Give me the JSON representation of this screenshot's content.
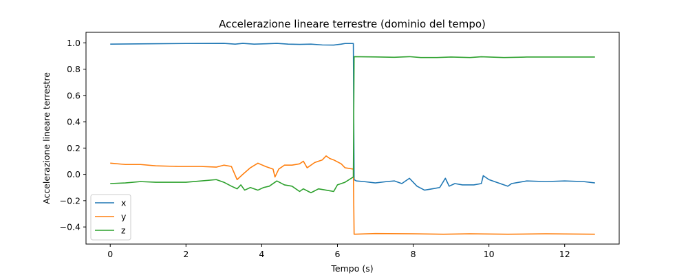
{
  "chart_data": {
    "type": "line",
    "title": "Accelerazione lineare terrestre (dominio del tempo)",
    "xlabel": "Tempo (s)",
    "ylabel": "Accelerazione lineare terrestre",
    "xlim": [
      -0.64,
      13.44
    ],
    "ylim": [
      -0.53,
      1.08
    ],
    "xticks": [
      0,
      2,
      4,
      6,
      8,
      10,
      12
    ],
    "yticks": [
      -0.4,
      -0.2,
      0.0,
      0.2,
      0.4,
      0.6,
      0.8,
      1.0
    ],
    "ytick_labels": [
      "−0.4",
      "−0.2",
      "0.0",
      "0.2",
      "0.4",
      "0.6",
      "0.8",
      "1.0"
    ],
    "grid": false,
    "legend_position": "lower-left",
    "series": [
      {
        "name": "x",
        "color": "#1f77b4",
        "points": [
          [
            0,
            0.99
          ],
          [
            1,
            0.993
          ],
          [
            2,
            0.995
          ],
          [
            3,
            0.996
          ],
          [
            3.3,
            0.99
          ],
          [
            3.5,
            0.996
          ],
          [
            3.8,
            0.99
          ],
          [
            4.1,
            0.993
          ],
          [
            4.4,
            0.996
          ],
          [
            4.7,
            0.99
          ],
          [
            5.0,
            0.988
          ],
          [
            5.3,
            0.99
          ],
          [
            5.6,
            0.984
          ],
          [
            5.9,
            0.983
          ],
          [
            6.1,
            0.99
          ],
          [
            6.2,
            0.995
          ],
          [
            6.42,
            0.995
          ],
          [
            6.44,
            -0.04
          ],
          [
            6.5,
            -0.05
          ],
          [
            6.7,
            -0.055
          ],
          [
            7.0,
            -0.065
          ],
          [
            7.3,
            -0.055
          ],
          [
            7.5,
            -0.05
          ],
          [
            7.7,
            -0.07
          ],
          [
            7.9,
            -0.03
          ],
          [
            8.1,
            -0.09
          ],
          [
            8.3,
            -0.12
          ],
          [
            8.5,
            -0.11
          ],
          [
            8.7,
            -0.1
          ],
          [
            8.85,
            -0.03
          ],
          [
            8.95,
            -0.09
          ],
          [
            9.1,
            -0.07
          ],
          [
            9.3,
            -0.08
          ],
          [
            9.6,
            -0.08
          ],
          [
            9.8,
            -0.07
          ],
          [
            9.85,
            -0.01
          ],
          [
            10.0,
            -0.04
          ],
          [
            10.2,
            -0.06
          ],
          [
            10.5,
            -0.09
          ],
          [
            10.6,
            -0.07
          ],
          [
            10.8,
            -0.06
          ],
          [
            11.0,
            -0.05
          ],
          [
            11.5,
            -0.055
          ],
          [
            12.0,
            -0.05
          ],
          [
            12.5,
            -0.055
          ],
          [
            12.8,
            -0.065
          ]
        ]
      },
      {
        "name": "y",
        "color": "#ff7f0e",
        "points": [
          [
            0,
            0.085
          ],
          [
            0.4,
            0.075
          ],
          [
            0.8,
            0.075
          ],
          [
            1.2,
            0.065
          ],
          [
            1.8,
            0.06
          ],
          [
            2.4,
            0.06
          ],
          [
            2.8,
            0.055
          ],
          [
            3.0,
            0.07
          ],
          [
            3.2,
            0.06
          ],
          [
            3.35,
            -0.04
          ],
          [
            3.5,
            0.0
          ],
          [
            3.7,
            0.05
          ],
          [
            3.9,
            0.085
          ],
          [
            4.1,
            0.06
          ],
          [
            4.3,
            0.04
          ],
          [
            4.35,
            -0.02
          ],
          [
            4.45,
            0.04
          ],
          [
            4.6,
            0.07
          ],
          [
            4.8,
            0.07
          ],
          [
            5.0,
            0.08
          ],
          [
            5.1,
            0.1
          ],
          [
            5.2,
            0.05
          ],
          [
            5.4,
            0.09
          ],
          [
            5.6,
            0.11
          ],
          [
            5.7,
            0.14
          ],
          [
            5.8,
            0.12
          ],
          [
            5.9,
            0.11
          ],
          [
            6.1,
            0.08
          ],
          [
            6.2,
            0.05
          ],
          [
            6.42,
            0.04
          ],
          [
            6.44,
            -0.455
          ],
          [
            7.0,
            -0.45
          ],
          [
            8.0,
            -0.452
          ],
          [
            8.8,
            -0.455
          ],
          [
            9.5,
            -0.452
          ],
          [
            10.5,
            -0.455
          ],
          [
            11.5,
            -0.452
          ],
          [
            12.8,
            -0.455
          ]
        ]
      },
      {
        "name": "z",
        "color": "#2ca02c",
        "points": [
          [
            0,
            -0.07
          ],
          [
            0.4,
            -0.065
          ],
          [
            0.8,
            -0.055
          ],
          [
            1.2,
            -0.06
          ],
          [
            1.6,
            -0.06
          ],
          [
            2.0,
            -0.06
          ],
          [
            2.4,
            -0.05
          ],
          [
            2.8,
            -0.04
          ],
          [
            3.0,
            -0.06
          ],
          [
            3.2,
            -0.09
          ],
          [
            3.35,
            -0.11
          ],
          [
            3.45,
            -0.08
          ],
          [
            3.55,
            -0.12
          ],
          [
            3.7,
            -0.1
          ],
          [
            3.9,
            -0.12
          ],
          [
            4.05,
            -0.1
          ],
          [
            4.2,
            -0.09
          ],
          [
            4.4,
            -0.05
          ],
          [
            4.6,
            -0.08
          ],
          [
            4.8,
            -0.09
          ],
          [
            5.0,
            -0.13
          ],
          [
            5.1,
            -0.11
          ],
          [
            5.3,
            -0.14
          ],
          [
            5.5,
            -0.11
          ],
          [
            5.7,
            -0.12
          ],
          [
            5.9,
            -0.13
          ],
          [
            6.0,
            -0.08
          ],
          [
            6.2,
            -0.06
          ],
          [
            6.42,
            -0.02
          ],
          [
            6.44,
            0.895
          ],
          [
            7.0,
            0.893
          ],
          [
            7.5,
            0.89
          ],
          [
            7.9,
            0.895
          ],
          [
            8.2,
            0.888
          ],
          [
            8.6,
            0.888
          ],
          [
            9.0,
            0.892
          ],
          [
            9.5,
            0.888
          ],
          [
            9.8,
            0.894
          ],
          [
            10.4,
            0.888
          ],
          [
            11.0,
            0.892
          ],
          [
            12.0,
            0.892
          ],
          [
            12.8,
            0.892
          ]
        ]
      }
    ]
  }
}
